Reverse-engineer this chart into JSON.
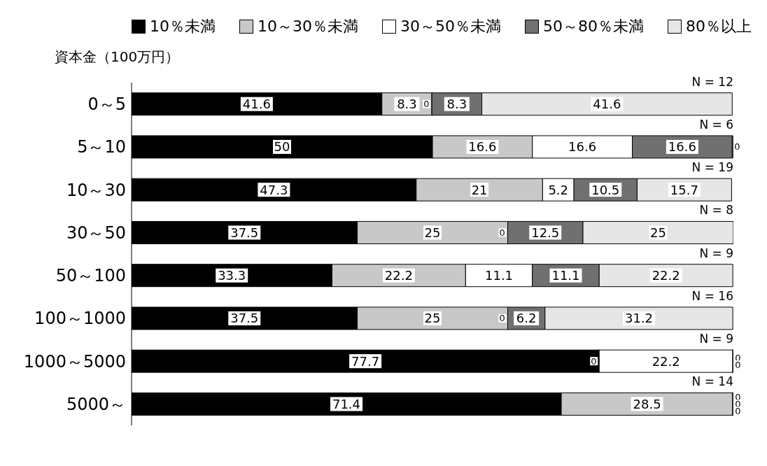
{
  "chart_data": {
    "type": "bar",
    "orientation": "horizontal",
    "stacked": true,
    "ylabel": "資本金（100万円）",
    "categories": [
      "0～5",
      "5～10",
      "10～30",
      "30～50",
      "50～100",
      "100～1000",
      "1000～5000",
      "5000～"
    ],
    "series": [
      {
        "name": "10％未満",
        "color": "#000000",
        "values": [
          41.6,
          50,
          47.3,
          37.5,
          33.3,
          37.5,
          77.7,
          71.4
        ]
      },
      {
        "name": "10～30％未満",
        "color": "#c8c8c8",
        "values": [
          8.3,
          16.6,
          21,
          25,
          22.2,
          25,
          0,
          28.5
        ]
      },
      {
        "name": "30～50％未満",
        "color": "#ffffff",
        "values": [
          0,
          16.6,
          5.2,
          0,
          11.1,
          0,
          22.2,
          0
        ]
      },
      {
        "name": "50～80％未満",
        "color": "#707070",
        "values": [
          8.3,
          16.6,
          10.5,
          12.5,
          11.1,
          6.2,
          0,
          0
        ]
      },
      {
        "name": "80％以上",
        "color": "#e6e6e6",
        "values": [
          41.6,
          0,
          15.7,
          25,
          22.2,
          31.2,
          0,
          0
        ]
      }
    ],
    "data_labels": true,
    "legend": "top",
    "tick_labels": "y",
    "grid": false,
    "annotations": [
      "N = 12",
      "N = 6",
      "N = 19",
      "N = 8",
      "N = 9",
      "N = 16",
      "N = 9",
      "N = 14"
    ]
  }
}
